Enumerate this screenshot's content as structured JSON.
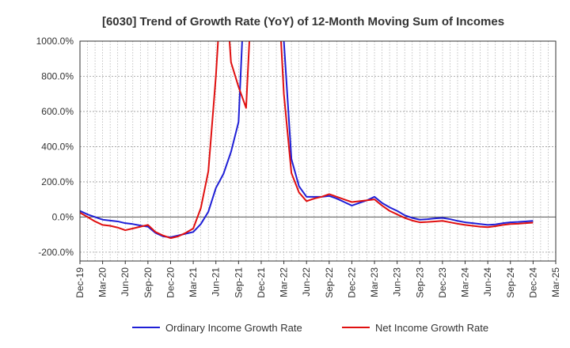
{
  "chart_data": {
    "type": "line",
    "title": "[6030]  Trend of Growth Rate (YoY) of 12-Month Moving Sum of Incomes",
    "xlabel": "",
    "ylabel": "",
    "ylim": [
      -250,
      1000
    ],
    "xlim": [
      "Dec-19",
      "Mar-25"
    ],
    "yticks": [
      -200,
      0,
      200,
      400,
      600,
      800,
      1000
    ],
    "ytick_labels": [
      "-200.0%",
      "0.0%",
      "200.0%",
      "400.0%",
      "600.0%",
      "800.0%",
      "1000.0%"
    ],
    "xtick_labels": [
      "Dec-19",
      "Mar-20",
      "Jun-20",
      "Sep-20",
      "Dec-20",
      "Mar-21",
      "Jun-21",
      "Sep-21",
      "Dec-21",
      "Mar-22",
      "Jun-22",
      "Sep-22",
      "Dec-22",
      "Mar-23",
      "Jun-23",
      "Sep-23",
      "Dec-23",
      "Mar-24",
      "Jun-24",
      "Sep-24",
      "Dec-24",
      "Mar-25"
    ],
    "grid": true,
    "legend_position": "bottom",
    "series": [
      {
        "name": "Ordinary Income Growth Rate",
        "color": "#1f1fd6",
        "points": [
          [
            "Dec-19",
            35
          ],
          [
            "Jan-20",
            15
          ],
          [
            "Feb-20",
            0
          ],
          [
            "Mar-20",
            -15
          ],
          [
            "Apr-20",
            -20
          ],
          [
            "May-20",
            -25
          ],
          [
            "Jun-20",
            -35
          ],
          [
            "Jul-20",
            -40
          ],
          [
            "Aug-20",
            -48
          ],
          [
            "Sep-20",
            -55
          ],
          [
            "Oct-20",
            -90
          ],
          [
            "Nov-20",
            -110
          ],
          [
            "Dec-20",
            -115
          ],
          [
            "Jan-21",
            -105
          ],
          [
            "Feb-21",
            -95
          ],
          [
            "Mar-21",
            -85
          ],
          [
            "Apr-21",
            -40
          ],
          [
            "May-21",
            30
          ],
          [
            "Jun-21",
            165
          ],
          [
            "Jul-21",
            245
          ],
          [
            "Aug-21",
            370
          ],
          [
            "Sep-21",
            540
          ],
          [
            "Oct-21",
            1500
          ],
          [
            "Feb-22",
            1500
          ],
          [
            "Mar-22",
            1000
          ],
          [
            "Apr-22",
            330
          ],
          [
            "May-22",
            175
          ],
          [
            "Jun-22",
            115
          ],
          [
            "Jul-22",
            115
          ],
          [
            "Aug-22",
            115
          ],
          [
            "Sep-22",
            120
          ],
          [
            "Oct-22",
            105
          ],
          [
            "Nov-22",
            85
          ],
          [
            "Dec-22",
            65
          ],
          [
            "Jan-23",
            80
          ],
          [
            "Feb-23",
            95
          ],
          [
            "Mar-23",
            115
          ],
          [
            "Apr-23",
            80
          ],
          [
            "May-23",
            55
          ],
          [
            "Jun-23",
            35
          ],
          [
            "Jul-23",
            10
          ],
          [
            "Aug-23",
            -5
          ],
          [
            "Sep-23",
            -15
          ],
          [
            "Oct-23",
            -12
          ],
          [
            "Nov-23",
            -8
          ],
          [
            "Dec-23",
            -5
          ],
          [
            "Jan-24",
            -12
          ],
          [
            "Feb-24",
            -22
          ],
          [
            "Mar-24",
            -30
          ],
          [
            "Apr-24",
            -35
          ],
          [
            "May-24",
            -40
          ],
          [
            "Jun-24",
            -45
          ],
          [
            "Jul-24",
            -42
          ],
          [
            "Aug-24",
            -35
          ],
          [
            "Sep-24",
            -30
          ],
          [
            "Oct-24",
            -28
          ],
          [
            "Nov-24",
            -25
          ],
          [
            "Dec-24",
            -22
          ]
        ]
      },
      {
        "name": "Net Income Growth Rate",
        "color": "#e01010",
        "points": [
          [
            "Dec-19",
            25
          ],
          [
            "Jan-20",
            0
          ],
          [
            "Feb-20",
            -25
          ],
          [
            "Mar-20",
            -45
          ],
          [
            "Apr-20",
            -50
          ],
          [
            "May-20",
            -60
          ],
          [
            "Jun-20",
            -75
          ],
          [
            "Jul-20",
            -65
          ],
          [
            "Aug-20",
            -55
          ],
          [
            "Sep-20",
            -45
          ],
          [
            "Oct-20",
            -85
          ],
          [
            "Nov-20",
            -105
          ],
          [
            "Dec-20",
            -120
          ],
          [
            "Jan-21",
            -110
          ],
          [
            "Feb-21",
            -90
          ],
          [
            "Mar-21",
            -65
          ],
          [
            "Apr-21",
            50
          ],
          [
            "May-21",
            260
          ],
          [
            "Jun-21",
            800
          ],
          [
            "Jul-21",
            1500
          ],
          [
            "Aug-21",
            880
          ],
          [
            "Sep-21",
            740
          ],
          [
            "Oct-21",
            620
          ],
          [
            "Nov-21",
            1500
          ],
          [
            "Feb-22",
            1500
          ],
          [
            "Mar-22",
            700
          ],
          [
            "Apr-22",
            250
          ],
          [
            "May-22",
            140
          ],
          [
            "Jun-22",
            90
          ],
          [
            "Jul-22",
            105
          ],
          [
            "Aug-22",
            115
          ],
          [
            "Sep-22",
            130
          ],
          [
            "Oct-22",
            115
          ],
          [
            "Nov-22",
            100
          ],
          [
            "Dec-22",
            85
          ],
          [
            "Jan-23",
            90
          ],
          [
            "Feb-23",
            95
          ],
          [
            "Mar-23",
            100
          ],
          [
            "Apr-23",
            65
          ],
          [
            "May-23",
            35
          ],
          [
            "Jun-23",
            15
          ],
          [
            "Jul-23",
            -5
          ],
          [
            "Aug-23",
            -20
          ],
          [
            "Sep-23",
            -30
          ],
          [
            "Oct-23",
            -28
          ],
          [
            "Nov-23",
            -25
          ],
          [
            "Dec-23",
            -22
          ],
          [
            "Jan-24",
            -30
          ],
          [
            "Feb-24",
            -38
          ],
          [
            "Mar-24",
            -45
          ],
          [
            "Apr-24",
            -50
          ],
          [
            "May-24",
            -55
          ],
          [
            "Jun-24",
            -58
          ],
          [
            "Jul-24",
            -52
          ],
          [
            "Aug-24",
            -45
          ],
          [
            "Sep-24",
            -40
          ],
          [
            "Oct-24",
            -38
          ],
          [
            "Nov-24",
            -35
          ],
          [
            "Dec-24",
            -32
          ]
        ]
      }
    ]
  }
}
